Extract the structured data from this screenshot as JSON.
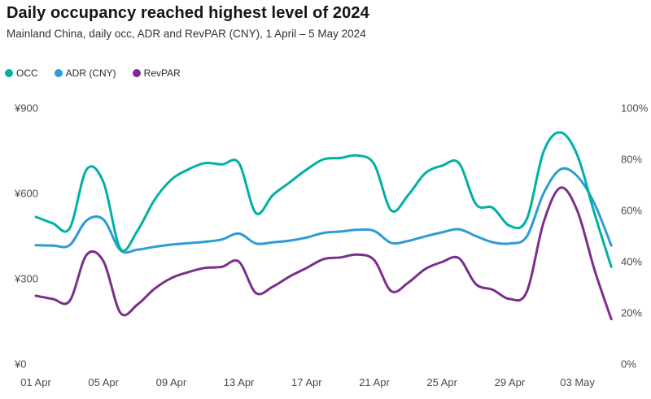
{
  "header": {
    "title": "Daily occupancy reached highest level of 2024",
    "subtitle": "Mainland China, daily occ, ADR and RevPAR (CNY), 1 April – 5 May 2024"
  },
  "legend": [
    {
      "label": "OCC",
      "color": "#00B0A3"
    },
    {
      "label": "ADR (CNY)",
      "color": "#2E9BD6"
    },
    {
      "label": "RevPAR",
      "color": "#7D2E8D"
    }
  ],
  "chart_data": {
    "type": "line",
    "title": "Daily occupancy reached highest level of 2024",
    "subtitle": "Mainland China, daily occ, ADR and RevPAR (CNY), 1 April – 5 May 2024",
    "x": [
      "01 Apr",
      "02 Apr",
      "03 Apr",
      "04 Apr",
      "05 Apr",
      "06 Apr",
      "07 Apr",
      "08 Apr",
      "09 Apr",
      "10 Apr",
      "11 Apr",
      "12 Apr",
      "13 Apr",
      "14 Apr",
      "15 Apr",
      "16 Apr",
      "17 Apr",
      "18 Apr",
      "19 Apr",
      "20 Apr",
      "21 Apr",
      "22 Apr",
      "23 Apr",
      "24 Apr",
      "25 Apr",
      "26 Apr",
      "27 Apr",
      "28 Apr",
      "29 Apr",
      "30 Apr",
      "01 May",
      "02 May",
      "03 May",
      "04 May",
      "05 May"
    ],
    "series": [
      {
        "name": "OCC",
        "unit": "%",
        "axis": "right",
        "color": "#00B0A3",
        "values": [
          57.5,
          55,
          53,
          76,
          71,
          45,
          52,
          64,
          72,
          76,
          78.5,
          78,
          78.5,
          59,
          66,
          71,
          76,
          80,
          80.5,
          81.5,
          78,
          60,
          66,
          74.5,
          77.5,
          78.5,
          62.5,
          61,
          54,
          56.5,
          83,
          90.5,
          81.5,
          59,
          38
        ]
      },
      {
        "name": "ADR (CNY)",
        "unit": "CNY",
        "axis": "left",
        "color": "#2E9BD6",
        "values": [
          418,
          417,
          418,
          505,
          508,
          400,
          402,
          412,
          420,
          425,
          430,
          438,
          459,
          424,
          428,
          434,
          445,
          461,
          466,
          472,
          468,
          426,
          433,
          449,
          463,
          474,
          450,
          428,
          424,
          448,
          600,
          685,
          660,
          565,
          417
        ]
      },
      {
        "name": "RevPAR",
        "unit": "CNY",
        "axis": "left",
        "color": "#7D2E8D",
        "values": [
          240,
          229,
          222,
          384,
          361,
          180,
          209,
          264,
          302,
          323,
          338,
          342,
          360,
          250,
          272,
          308,
          338,
          369,
          375,
          385,
          365,
          256,
          286,
          334,
          359,
          372,
          281,
          261,
          229,
          253,
          498,
          620,
          538,
          333,
          158
        ]
      }
    ],
    "left_axis": {
      "tick_labels": [
        "¥0",
        "¥300",
        "¥600",
        "¥900"
      ],
      "tick_values": [
        0,
        300,
        600,
        900
      ],
      "range": [
        0,
        900
      ]
    },
    "right_axis": {
      "tick_labels": [
        "0%",
        "20%",
        "40%",
        "60%",
        "80%",
        "100%"
      ],
      "tick_values": [
        0,
        20,
        40,
        60,
        80,
        100
      ],
      "range": [
        0,
        100
      ]
    },
    "x_axis": {
      "tick_labels": [
        "01 Apr",
        "05 Apr",
        "09 Apr",
        "13 Apr",
        "17 Apr",
        "21 Apr",
        "25 Apr",
        "29 Apr",
        "03 May"
      ],
      "tick_day_indices": [
        0,
        4,
        8,
        12,
        16,
        20,
        24,
        28,
        32
      ]
    },
    "grid": false,
    "legend_position": "top-left"
  }
}
